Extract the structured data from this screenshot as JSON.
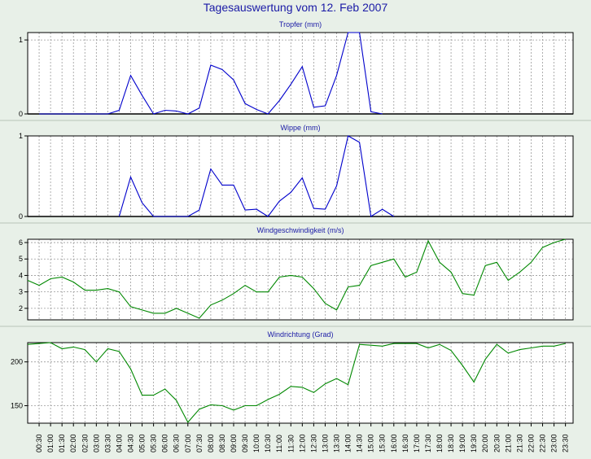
{
  "title": "Tagesauswertung vom 12. Feb 2007",
  "colors": {
    "background": "#e8f0e8",
    "blue": "#0000cc",
    "green": "#008800",
    "title": "#1a1aa6"
  },
  "x_ticks": [
    "00:30",
    "01:00",
    "01:30",
    "02:00",
    "02:30",
    "03:00",
    "03:30",
    "04:00",
    "04:30",
    "05:00",
    "05:30",
    "06:00",
    "06:30",
    "07:00",
    "07:30",
    "08:00",
    "08:30",
    "09:00",
    "09:30",
    "10:00",
    "10:30",
    "11:00",
    "11:30",
    "12:00",
    "12:30",
    "13:00",
    "13:30",
    "14:00",
    "14:30",
    "15:00",
    "15:30",
    "16:00",
    "16:30",
    "17:00",
    "17:30",
    "18:00",
    "18:30",
    "19:00",
    "19:30",
    "20:00",
    "20:30",
    "21:00",
    "21:30",
    "22:00",
    "22:30",
    "23:00",
    "23:30"
  ],
  "chart_data": [
    {
      "type": "line",
      "title": "Tropfer (mm)",
      "yticks": [
        "0",
        "1"
      ],
      "ylim": [
        0,
        1.1
      ],
      "color": "blue",
      "x": [
        "00:30",
        "01:00",
        "01:30",
        "02:00",
        "02:30",
        "03:00",
        "03:30",
        "04:00",
        "04:30",
        "05:00",
        "05:30",
        "06:00",
        "06:30",
        "07:00",
        "07:30",
        "08:00",
        "08:30",
        "09:00",
        "09:30",
        "10:00",
        "10:30",
        "11:00",
        "11:30",
        "12:00",
        "12:30",
        "13:00",
        "13:30",
        "14:00",
        "14:30",
        "15:00",
        "15:30"
      ],
      "values": [
        0,
        0,
        0,
        0,
        0,
        0,
        0,
        0.05,
        0.52,
        0.25,
        0,
        0.05,
        0.04,
        0,
        0.08,
        0.66,
        0.6,
        0.46,
        0.14,
        0.06,
        0,
        0.18,
        0.4,
        0.64,
        0.09,
        0.11,
        0.52,
        1.1,
        1.1,
        0.03,
        0
      ]
    },
    {
      "type": "line",
      "title": "Wippe (mm)",
      "yticks": [
        "0",
        "1"
      ],
      "ylim": [
        0,
        1.0
      ],
      "color": "blue",
      "x": [
        "04:00",
        "04:30",
        "05:00",
        "05:30",
        "06:00",
        "06:30",
        "07:00",
        "07:30",
        "08:00",
        "08:30",
        "09:00",
        "09:30",
        "10:00",
        "10:30",
        "11:00",
        "11:30",
        "12:00",
        "12:30",
        "13:00",
        "13:30",
        "14:00",
        "14:30",
        "15:00",
        "15:30",
        "16:00"
      ],
      "values": [
        0,
        0.49,
        0.17,
        0,
        0,
        0,
        0,
        0.08,
        0.59,
        0.39,
        0.39,
        0.08,
        0.09,
        0,
        0.19,
        0.3,
        0.48,
        0.1,
        0.09,
        0.38,
        1.0,
        0.92,
        0,
        0.09,
        0
      ]
    },
    {
      "type": "line",
      "title": "Windgeschwindigkeit (m/s)",
      "yticks": [
        "2",
        "3",
        "4",
        "5",
        "6"
      ],
      "ylim": [
        1.3,
        6.2
      ],
      "color": "green",
      "x": [
        "00:00",
        "00:30",
        "01:00",
        "01:30",
        "02:00",
        "02:30",
        "03:00",
        "03:30",
        "04:00",
        "04:30",
        "05:00",
        "05:30",
        "06:00",
        "06:30",
        "07:00",
        "07:30",
        "08:00",
        "08:30",
        "09:00",
        "09:30",
        "10:00",
        "10:30",
        "11:00",
        "11:30",
        "12:00",
        "12:30",
        "13:00",
        "13:30",
        "14:00",
        "14:30",
        "15:00",
        "15:30",
        "16:00",
        "16:30",
        "17:00",
        "17:30",
        "18:00",
        "18:30",
        "19:00",
        "19:30",
        "20:00",
        "20:30",
        "21:00",
        "21:30",
        "22:00",
        "22:30",
        "23:00",
        "23:30"
      ],
      "values": [
        3.7,
        3.4,
        3.8,
        3.9,
        3.6,
        3.1,
        3.1,
        3.2,
        3.0,
        2.1,
        1.9,
        1.7,
        1.7,
        2.0,
        1.7,
        1.4,
        2.2,
        2.5,
        2.9,
        3.4,
        3.0,
        3.0,
        3.9,
        4.0,
        3.9,
        3.2,
        2.3,
        1.9,
        3.3,
        3.4,
        4.6,
        4.8,
        5.0,
        3.9,
        4.2,
        6.1,
        4.8,
        4.2,
        2.9,
        2.8,
        4.6,
        4.8,
        3.7,
        4.2,
        4.8,
        5.7,
        6.0,
        6.2
      ]
    },
    {
      "type": "line",
      "title": "Windrichtung (Grad)",
      "yticks": [
        "150",
        "200"
      ],
      "ylim": [
        130,
        222
      ],
      "color": "green",
      "x": [
        "00:00",
        "00:30",
        "01:00",
        "01:30",
        "02:00",
        "02:30",
        "03:00",
        "03:30",
        "04:00",
        "04:30",
        "05:00",
        "05:30",
        "06:00",
        "06:30",
        "07:00",
        "07:30",
        "08:00",
        "08:30",
        "09:00",
        "09:30",
        "10:00",
        "10:30",
        "11:00",
        "11:30",
        "12:00",
        "12:30",
        "13:00",
        "13:30",
        "14:00",
        "14:30",
        "15:00",
        "15:30",
        "16:00",
        "16:30",
        "17:00",
        "17:30",
        "18:00",
        "18:30",
        "19:00",
        "19:30",
        "20:00",
        "20:30",
        "21:00",
        "21:30",
        "22:00",
        "22:30",
        "23:00",
        "23:30"
      ],
      "values": [
        220,
        221,
        222,
        215,
        217,
        214,
        200,
        215,
        212,
        192,
        162,
        162,
        169,
        156,
        131,
        146,
        151,
        150,
        145,
        150,
        150,
        157,
        163,
        172,
        171,
        165,
        175,
        181,
        174,
        220,
        219,
        218,
        221,
        221,
        221,
        216,
        220,
        213,
        196,
        177,
        203,
        220,
        210,
        214,
        216,
        218,
        218,
        221
      ]
    }
  ]
}
